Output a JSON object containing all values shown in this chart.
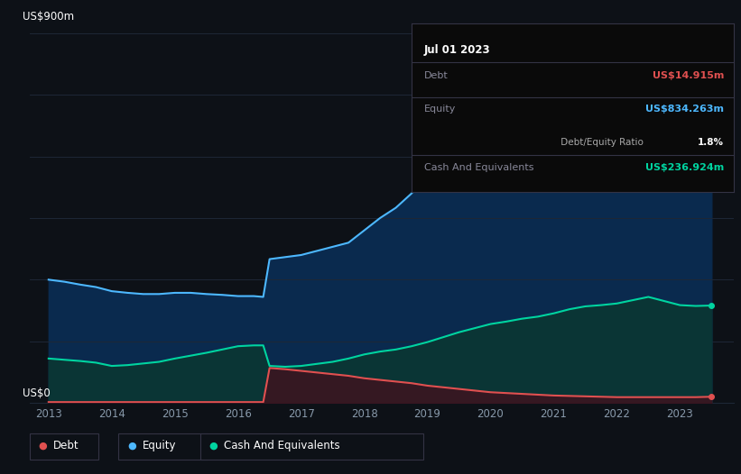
{
  "bg_color": "#0d1117",
  "plot_bg_color": "#0d1117",
  "grid_color": "#1e2736",
  "ylabel_top": "US$900m",
  "ylabel_bottom": "US$0",
  "debt_color": "#e05050",
  "equity_color": "#4db8ff",
  "cash_color": "#00d4a0",
  "equity_fill": "#0a2a4e",
  "cash_fill": "#0a3535",
  "debt_fill_color": "#3a1520",
  "years": [
    2013.0,
    2013.25,
    2013.5,
    2013.75,
    2014.0,
    2014.25,
    2014.5,
    2014.75,
    2015.0,
    2015.25,
    2015.5,
    2015.75,
    2016.0,
    2016.25,
    2016.4,
    2016.5,
    2016.75,
    2017.0,
    2017.25,
    2017.5,
    2017.75,
    2018.0,
    2018.25,
    2018.5,
    2018.75,
    2019.0,
    2019.25,
    2019.5,
    2019.75,
    2020.0,
    2020.25,
    2020.5,
    2020.75,
    2021.0,
    2021.25,
    2021.5,
    2021.75,
    2022.0,
    2022.25,
    2022.5,
    2022.75,
    2023.0,
    2023.25,
    2023.5
  ],
  "equity": [
    300,
    295,
    288,
    282,
    272,
    268,
    265,
    265,
    268,
    268,
    265,
    263,
    260,
    260,
    258,
    350,
    355,
    360,
    370,
    380,
    390,
    420,
    450,
    475,
    510,
    555,
    590,
    620,
    635,
    648,
    655,
    665,
    675,
    700,
    718,
    738,
    755,
    780,
    840,
    860,
    835,
    820,
    830,
    834
  ],
  "cash": [
    108,
    105,
    102,
    98,
    90,
    92,
    96,
    100,
    108,
    115,
    122,
    130,
    138,
    140,
    140,
    90,
    88,
    90,
    95,
    100,
    108,
    118,
    125,
    130,
    138,
    148,
    160,
    172,
    182,
    192,
    198,
    205,
    210,
    218,
    228,
    235,
    238,
    242,
    250,
    258,
    248,
    238,
    236,
    237
  ],
  "debt": [
    2,
    2,
    2,
    2,
    2,
    2,
    2,
    2,
    2,
    2,
    2,
    2,
    2,
    2,
    2,
    85,
    82,
    78,
    74,
    70,
    66,
    60,
    56,
    52,
    48,
    42,
    38,
    34,
    30,
    26,
    24,
    22,
    20,
    18,
    17,
    16,
    15,
    14,
    14,
    14,
    14,
    14,
    14,
    15
  ],
  "ylim": [
    0,
    900
  ],
  "xlim": [
    2012.7,
    2023.85
  ],
  "xticks": [
    2013,
    2014,
    2015,
    2016,
    2017,
    2018,
    2019,
    2020,
    2021,
    2022,
    2023
  ],
  "tooltip": {
    "date": "Jul 01 2023",
    "debt_label": "Debt",
    "debt_value": "US$14.915m",
    "equity_label": "Equity",
    "equity_value": "US$834.263m",
    "ratio_value": "1.8%",
    "ratio_label": " Debt/Equity Ratio",
    "cash_label": "Cash And Equivalents",
    "cash_value": "US$236.924m"
  },
  "legend_labels": [
    "Debt",
    "Equity",
    "Cash And Equivalents"
  ]
}
